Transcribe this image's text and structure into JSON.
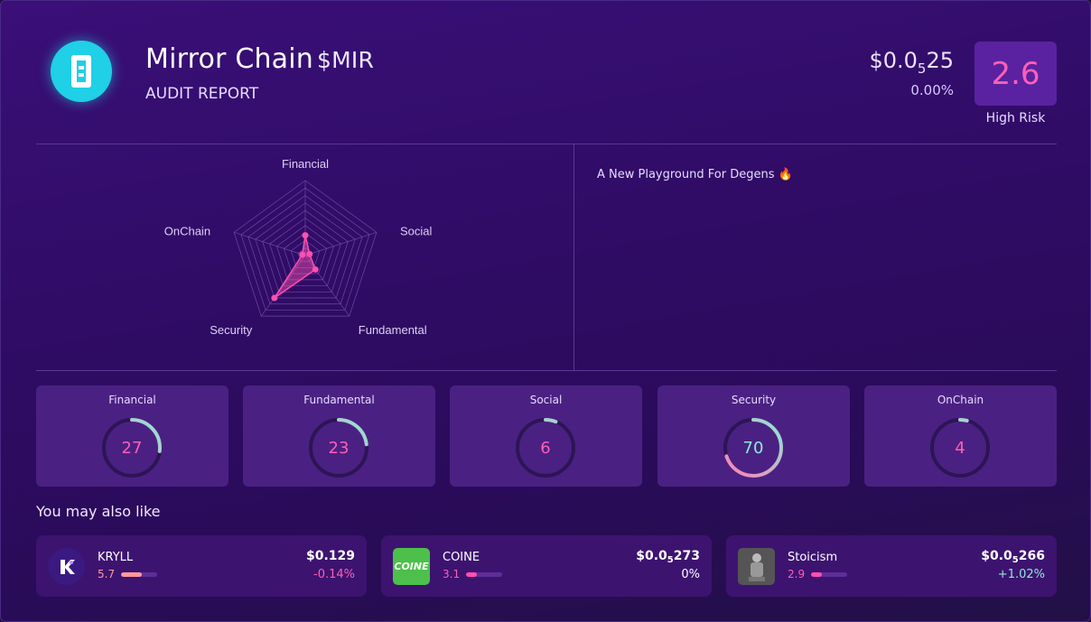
{
  "header": {
    "name": "Mirror Chain",
    "symbol": "$MIR",
    "subtitle": "AUDIT REPORT",
    "price_lead": "$0.0",
    "price_sub": "5",
    "price_tail": "25",
    "change": "0.00%",
    "score": "2.6",
    "risk_label": "High Risk",
    "logo_icon": "mirror-chain-logo"
  },
  "radar": {
    "axes": [
      "Financial",
      "Social",
      "Fundamental",
      "Security",
      "OnChain"
    ],
    "values": [
      27,
      6,
      23,
      70,
      4
    ],
    "max": 100,
    "fill": "#ff4fb0"
  },
  "description": "A New Playground For Degens 🔥",
  "metrics": [
    {
      "label": "Financial",
      "value": "27",
      "score": 27
    },
    {
      "label": "Fundamental",
      "value": "23",
      "score": 23
    },
    {
      "label": "Social",
      "value": "6",
      "score": 6
    },
    {
      "label": "Security",
      "value": "70",
      "score": 70
    },
    {
      "label": "OnChain",
      "value": "4",
      "score": 4
    }
  ],
  "related_heading": "You may also like",
  "related": [
    {
      "name": "KRYLL",
      "score": "5.7",
      "score_pct": 57,
      "price_lead": "$0.129",
      "price_sub": "",
      "price_tail": "",
      "change": "-0.14%",
      "change_color": "#ff5fb8",
      "bar_color": "#ff9a9a",
      "icon": "kryll-logo"
    },
    {
      "name": "COINE",
      "score": "3.1",
      "score_pct": 31,
      "price_lead": "$0.0",
      "price_sub": "5",
      "price_tail": "273",
      "change": "0%",
      "change_color": "#ffffff",
      "bar_color": "#ff4fb0",
      "icon": "coine-logo"
    },
    {
      "name": "Stoicism",
      "score": "2.9",
      "score_pct": 29,
      "price_lead": "$0.0",
      "price_sub": "5",
      "price_tail": "266",
      "change": "+1.02%",
      "change_color": "#8fe8d8",
      "bar_color": "#ff4fb0",
      "icon": "stoicism-logo"
    }
  ],
  "colors": {
    "accent_pink": "#ff5fb8",
    "accent_teal": "#8fe8d8",
    "card_bg": "#4a2182"
  }
}
